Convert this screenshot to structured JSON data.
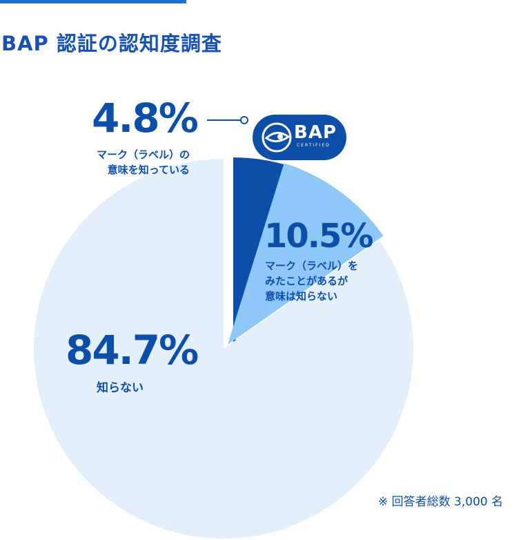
{
  "title": "BAP 認証の認知度調査",
  "note": "※ 回答者総数 3,000 名",
  "badge": {
    "text": "BAP",
    "sub": "CERTIFIED"
  },
  "labels": [
    {
      "pct": "4.8%",
      "desc_lines": [
        "マーク（ラベル）の",
        "意味を知っている"
      ]
    },
    {
      "pct": "10.5%",
      "desc_lines": [
        "マーク（ラベル）を",
        "みたことがあるが",
        "意味は知らない"
      ]
    },
    {
      "pct": "84.7%",
      "desc_lines": [
        "知らない"
      ]
    }
  ],
  "chart_data": {
    "type": "pie",
    "title": "BAP 認証の認知度調査",
    "slices": [
      {
        "label": "マーク（ラベル）の意味を知っている",
        "value": 4.8,
        "color": "#0d4ea8"
      },
      {
        "label": "マーク（ラベル）をみたことがあるが意味は知らない",
        "value": 10.5,
        "color": "#8ec8f8"
      },
      {
        "label": "知らない",
        "value": 84.7,
        "color": "#e3f0fc"
      }
    ],
    "total_respondents": 3000
  },
  "colors": {
    "accent": "#1f6fd6",
    "text": "#0d4ea8"
  }
}
